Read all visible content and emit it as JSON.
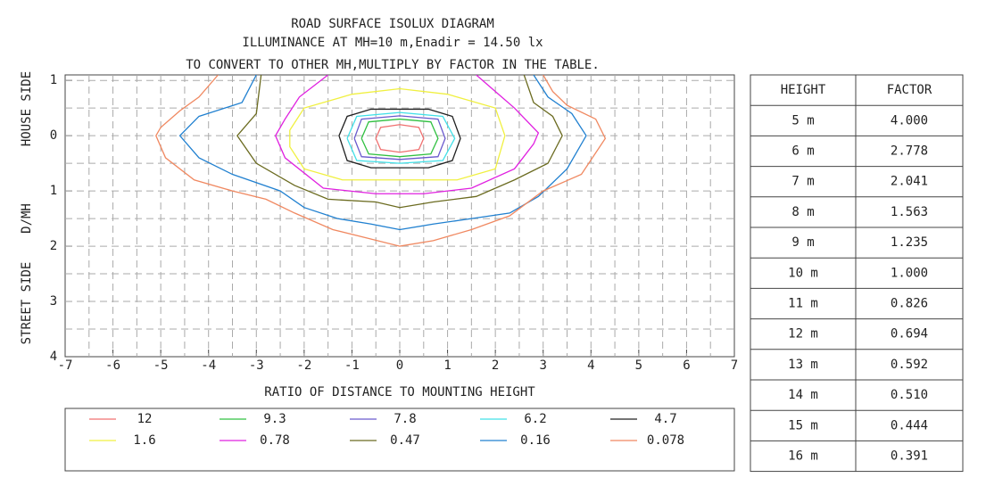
{
  "chart_data": {
    "type": "contour",
    "title": [
      "ROAD SURFACE ISOLUX DIAGRAM",
      "ILLUMINANCE AT MH=10 m,Enadir  = 14.50 lx",
      "TO CONVERT TO OTHER MH,MULTIPLY BY FACTOR IN THE TABLE."
    ],
    "xlabel": "RATIO OF DISTANCE TO MOUNTING HEIGHT",
    "ylabel": [
      "STREET SIDE",
      "D/MH",
      "HOUSE SIDE"
    ],
    "xlim": [
      -7,
      7
    ],
    "ylim": [
      -1.1,
      4
    ],
    "xticks": [
      -7,
      -6,
      -5,
      -4,
      -3,
      -2,
      -1,
      0,
      1,
      2,
      3,
      4,
      5,
      6,
      7
    ],
    "yticks": [
      {
        "value": -1,
        "label": "1"
      },
      0,
      1,
      2,
      3,
      4
    ],
    "xminorticks": [
      -6.5,
      -5.5,
      -4.5,
      -3.5,
      -2.5,
      -1.5,
      -0.5,
      0.5,
      1.5,
      2.5,
      3.5,
      4.5,
      5.5,
      6.5
    ],
    "yminorticks": [
      -0.5,
      0.5,
      1.5,
      2.5,
      3.5
    ],
    "grid": true,
    "series": [
      {
        "name": "12",
        "color": "#f07070",
        "x": [
          -0.5,
          -0.4,
          0,
          0.4,
          0.5,
          0.4,
          0,
          -0.4,
          -0.5
        ],
        "y": [
          0.05,
          -0.15,
          -0.2,
          -0.15,
          0.05,
          0.25,
          0.3,
          0.25,
          0.05
        ]
      },
      {
        "name": "9.3",
        "color": "#30c040",
        "x": [
          -0.8,
          -0.65,
          0,
          0.65,
          0.8,
          0.65,
          0,
          -0.65,
          -0.8
        ],
        "y": [
          0.05,
          -0.25,
          -0.3,
          -0.25,
          0.05,
          0.33,
          0.38,
          0.33,
          0.05
        ]
      },
      {
        "name": "7.8",
        "color": "#6a5acd",
        "x": [
          -0.95,
          -0.8,
          0,
          0.8,
          0.95,
          0.8,
          0,
          -0.8,
          -0.95
        ],
        "y": [
          0.05,
          -0.3,
          -0.36,
          -0.3,
          0.05,
          0.38,
          0.43,
          0.38,
          0.05
        ]
      },
      {
        "name": "6.2",
        "color": "#40e0e8",
        "x": [
          -1.1,
          -0.9,
          0,
          0.9,
          1.15,
          0.9,
          0,
          -0.9,
          -1.1
        ],
        "y": [
          0.05,
          -0.35,
          -0.42,
          -0.35,
          0.05,
          0.45,
          0.5,
          0.45,
          0.05
        ]
      },
      {
        "name": "4.7",
        "color": "#202020",
        "x": [
          -1.27,
          -1.1,
          -0.6,
          0.6,
          1.1,
          1.27,
          1.1,
          0.6,
          -0.6,
          -1.1,
          -1.27
        ],
        "y": [
          0,
          -0.35,
          -0.48,
          -0.48,
          -0.35,
          0.05,
          0.45,
          0.58,
          0.58,
          0.45,
          0
        ]
      },
      {
        "name": "1.6",
        "color": "#f0f040",
        "x": [
          -2.3,
          -2.0,
          -1.0,
          0,
          1.0,
          2.0,
          2.2,
          2.0,
          1.2,
          0,
          -1.2,
          -2.0,
          -2.3,
          -2.3
        ],
        "y": [
          -0.1,
          -0.5,
          -0.75,
          -0.85,
          -0.75,
          -0.5,
          0,
          0.6,
          0.8,
          0.8,
          0.8,
          0.6,
          0.2,
          -0.1
        ]
      },
      {
        "name": "0.78",
        "color": "#e020e0",
        "x": [
          -1.5,
          -2.1,
          -2.4,
          -2.6,
          -2.4,
          -1.6,
          -0.5,
          0.5,
          1.5,
          2.4,
          2.8,
          2.9,
          2.4,
          2.0,
          1.6
        ],
        "y": [
          -1.1,
          -0.7,
          -0.3,
          0,
          0.4,
          0.95,
          1.05,
          1.05,
          0.95,
          0.6,
          0.15,
          -0.05,
          -0.5,
          -0.8,
          -1.1
        ]
      },
      {
        "name": "0.47",
        "color": "#6b6b20",
        "x": [
          -2.9,
          -3.0,
          -3.4,
          -3.0,
          -2.2,
          -1.5,
          -0.5,
          0,
          0.7,
          1.6,
          2.4,
          3.1,
          3.4,
          3.2,
          2.8,
          2.6
        ],
        "y": [
          -1.1,
          -0.4,
          0,
          0.5,
          0.9,
          1.15,
          1.2,
          1.3,
          1.2,
          1.1,
          0.8,
          0.5,
          0,
          -0.35,
          -0.6,
          -1.1
        ]
      },
      {
        "name": "0.16",
        "color": "#2080d0",
        "x": [
          -3.0,
          -3.3,
          -4.2,
          -4.6,
          -4.2,
          -3.5,
          -2.5,
          -2.0,
          -1.3,
          -0.6,
          0,
          0.7,
          1.5,
          2.3,
          2.9,
          3.5,
          3.9,
          3.6,
          3.1,
          2.8
        ],
        "y": [
          -1.1,
          -0.6,
          -0.35,
          0,
          0.4,
          0.7,
          1.0,
          1.3,
          1.5,
          1.6,
          1.7,
          1.6,
          1.5,
          1.4,
          1.1,
          0.6,
          0,
          -0.4,
          -0.7,
          -1.1
        ]
      },
      {
        "name": "0.078",
        "color": "#f08860",
        "x": [
          -3.8,
          -4.2,
          -4.6,
          -5.0,
          -5.1,
          -4.9,
          -4.3,
          -3.5,
          -2.8,
          -2.2,
          -1.4,
          -0.7,
          0,
          0.7,
          1.5,
          2.3,
          3.0,
          3.8,
          4.3,
          4.1,
          3.5,
          3.2,
          3.0
        ],
        "y": [
          -1.1,
          -0.7,
          -0.45,
          -0.15,
          0,
          0.4,
          0.8,
          1.0,
          1.15,
          1.4,
          1.7,
          1.85,
          2.0,
          1.9,
          1.7,
          1.45,
          1.0,
          0.7,
          0.05,
          -0.3,
          -0.55,
          -0.8,
          -1.1
        ]
      }
    ]
  },
  "table": {
    "header": [
      "HEIGHT",
      "FACTOR"
    ],
    "rows": [
      [
        "5 m",
        "4.000"
      ],
      [
        "6 m",
        "2.778"
      ],
      [
        "7 m",
        "2.041"
      ],
      [
        "8 m",
        "1.563"
      ],
      [
        "9 m",
        "1.235"
      ],
      [
        "10 m",
        "1.000"
      ],
      [
        "11 m",
        "0.826"
      ],
      [
        "12 m",
        "0.694"
      ],
      [
        "13 m",
        "0.592"
      ],
      [
        "14 m",
        "0.510"
      ],
      [
        "15 m",
        "0.444"
      ],
      [
        "16 m",
        "0.391"
      ]
    ]
  }
}
